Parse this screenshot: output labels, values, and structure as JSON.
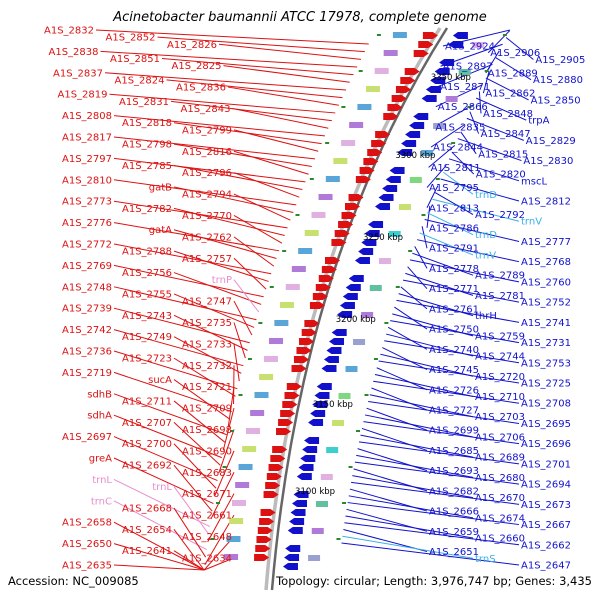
{
  "title": "Acinetobacter baumannii ATCC 17978, complete genome",
  "accession": "Accession: NC_009085",
  "summary": "Topology: circular; Length: 3,976,747 bp; Genes: 3,435",
  "colors": {
    "left_gene": "#dd1111",
    "right_gene": "#1111cc",
    "rna": "#e88fd0",
    "trna_right": "#3ab0e6",
    "ring": "#8a8a8a",
    "tick": "#2a8a2a"
  },
  "scale_labels": [
    "3350 kbp",
    "3300 kbp",
    "3250 kbp",
    "3200 kbp",
    "3150 kbp",
    "3100 kbp"
  ],
  "left_labels": [
    {
      "text": "A1S_2832",
      "type": "gene"
    },
    {
      "text": "A1S_2852",
      "type": "gene"
    },
    {
      "text": "A1S_2826",
      "type": "gene"
    },
    {
      "text": "A1S_2838",
      "type": "gene"
    },
    {
      "text": "A1S_2851",
      "type": "gene"
    },
    {
      "text": "A1S_2825",
      "type": "gene"
    },
    {
      "text": "A1S_2837",
      "type": "gene"
    },
    {
      "text": "A1S_2824",
      "type": "gene"
    },
    {
      "text": "A1S_2836",
      "type": "gene"
    },
    {
      "text": "A1S_2819",
      "type": "gene"
    },
    {
      "text": "A1S_2831",
      "type": "gene"
    },
    {
      "text": "A1S_2843",
      "type": "gene"
    },
    {
      "text": "A1S_2808",
      "type": "gene"
    },
    {
      "text": "A1S_2818",
      "type": "gene"
    },
    {
      "text": "A1S_2799",
      "type": "gene"
    },
    {
      "text": "A1S_2817",
      "type": "gene"
    },
    {
      "text": "A1S_2798",
      "type": "gene"
    },
    {
      "text": "A1S_2816",
      "type": "gene"
    },
    {
      "text": "A1S_2797",
      "type": "gene"
    },
    {
      "text": "A1S_2785",
      "type": "gene"
    },
    {
      "text": "A1S_2796",
      "type": "gene"
    },
    {
      "text": "A1S_2810",
      "type": "gene"
    },
    {
      "text": "gatB",
      "type": "gene"
    },
    {
      "text": "A1S_2794",
      "type": "gene"
    },
    {
      "text": "A1S_2773",
      "type": "gene"
    },
    {
      "text": "A1S_2782",
      "type": "gene"
    },
    {
      "text": "A1S_2770",
      "type": "gene"
    },
    {
      "text": "A1S_2776",
      "type": "gene"
    },
    {
      "text": "gatA",
      "type": "gene"
    },
    {
      "text": "A1S_2762",
      "type": "gene"
    },
    {
      "text": "A1S_2772",
      "type": "gene"
    },
    {
      "text": "A1S_2788",
      "type": "gene"
    },
    {
      "text": "A1S_2757",
      "type": "gene"
    },
    {
      "text": "A1S_2769",
      "type": "gene"
    },
    {
      "text": "A1S_2756",
      "type": "gene"
    },
    {
      "text": "trnP",
      "type": "rna"
    },
    {
      "text": "A1S_2748",
      "type": "gene"
    },
    {
      "text": "A1S_2755",
      "type": "gene"
    },
    {
      "text": "A1S_2747",
      "type": "gene"
    },
    {
      "text": "A1S_2739",
      "type": "gene"
    },
    {
      "text": "A1S_2743",
      "type": "gene"
    },
    {
      "text": "A1S_2735",
      "type": "gene"
    },
    {
      "text": "A1S_2742",
      "type": "gene"
    },
    {
      "text": "A1S_2749",
      "type": "gene"
    },
    {
      "text": "A1S_2733",
      "type": "gene"
    },
    {
      "text": "A1S_2736",
      "type": "gene"
    },
    {
      "text": "A1S_2723",
      "type": "gene"
    },
    {
      "text": "A1S_2732",
      "type": "gene"
    },
    {
      "text": "A1S_2719",
      "type": "gene"
    },
    {
      "text": "sucA",
      "type": "gene"
    },
    {
      "text": "A1S_2721",
      "type": "gene"
    },
    {
      "text": "sdhB",
      "type": "gene"
    },
    {
      "text": "A1S_2711",
      "type": "gene"
    },
    {
      "text": "A1S_2709",
      "type": "gene"
    },
    {
      "text": "sdhA",
      "type": "gene"
    },
    {
      "text": "A1S_2707",
      "type": "gene"
    },
    {
      "text": "A1S_2698",
      "type": "gene"
    },
    {
      "text": "A1S_2697",
      "type": "gene"
    },
    {
      "text": "A1S_2700",
      "type": "gene"
    },
    {
      "text": "A1S_2690",
      "type": "gene"
    },
    {
      "text": "greA",
      "type": "gene"
    },
    {
      "text": "A1S_2692",
      "type": "gene"
    },
    {
      "text": "A1S_2683",
      "type": "gene"
    },
    {
      "text": "trnL",
      "type": "rna"
    },
    {
      "text": "trnL",
      "type": "rna"
    },
    {
      "text": "A1S_2671",
      "type": "gene"
    },
    {
      "text": "trnC",
      "type": "rna"
    },
    {
      "text": "A1S_2668",
      "type": "gene"
    },
    {
      "text": "A1S_2661",
      "type": "gene"
    },
    {
      "text": "A1S_2658",
      "type": "gene"
    },
    {
      "text": "A1S_2654",
      "type": "gene"
    },
    {
      "text": "A1S_2648",
      "type": "gene"
    },
    {
      "text": "A1S_2650",
      "type": "gene"
    },
    {
      "text": "A1S_2641",
      "type": "gene"
    },
    {
      "text": "A1S_2634",
      "type": "gene"
    },
    {
      "text": "A1S_2635",
      "type": "gene"
    }
  ],
  "right_labels": [
    {
      "text": "A1S_2924",
      "type": "gene"
    },
    {
      "text": "A1S_2906",
      "type": "gene"
    },
    {
      "text": "A1S_2905",
      "type": "gene"
    },
    {
      "text": "A1S_2897",
      "type": "gene"
    },
    {
      "text": "A1S_2889",
      "type": "gene"
    },
    {
      "text": "A1S_2880",
      "type": "gene"
    },
    {
      "text": "A1S_2871",
      "type": "gene"
    },
    {
      "text": "A1S_2862",
      "type": "gene"
    },
    {
      "text": "A1S_2850",
      "type": "gene"
    },
    {
      "text": "A1S_2866",
      "type": "gene"
    },
    {
      "text": "A1S_2848",
      "type": "gene"
    },
    {
      "text": "trpA",
      "type": "gene"
    },
    {
      "text": "A1S_2835",
      "type": "gene"
    },
    {
      "text": "A1S_2847",
      "type": "gene"
    },
    {
      "text": "A1S_2829",
      "type": "gene"
    },
    {
      "text": "A1S_2844",
      "type": "gene"
    },
    {
      "text": "A1S_2815",
      "type": "gene"
    },
    {
      "text": "A1S_2830",
      "type": "gene"
    },
    {
      "text": "A1S_2811",
      "type": "gene"
    },
    {
      "text": "A1S_2820",
      "type": "gene"
    },
    {
      "text": "mscL",
      "type": "gene"
    },
    {
      "text": "A1S_2795",
      "type": "gene"
    },
    {
      "text": "trnD",
      "type": "trna"
    },
    {
      "text": "A1S_2812",
      "type": "gene"
    },
    {
      "text": "A1S_2813",
      "type": "gene"
    },
    {
      "text": "A1S_2792",
      "type": "gene"
    },
    {
      "text": "trnV",
      "type": "trna"
    },
    {
      "text": "A1S_2786",
      "type": "gene"
    },
    {
      "text": "trnD",
      "type": "trna"
    },
    {
      "text": "A1S_2777",
      "type": "gene"
    },
    {
      "text": "A1S_2791",
      "type": "gene"
    },
    {
      "text": "trnV",
      "type": "trna"
    },
    {
      "text": "A1S_2768",
      "type": "gene"
    },
    {
      "text": "A1S_2778",
      "type": "gene"
    },
    {
      "text": "A1S_2789",
      "type": "gene"
    },
    {
      "text": "A1S_2760",
      "type": "gene"
    },
    {
      "text": "A1S_2771",
      "type": "gene"
    },
    {
      "text": "A1S_2781",
      "type": "gene"
    },
    {
      "text": "A1S_2752",
      "type": "gene"
    },
    {
      "text": "A1S_2761",
      "type": "gene"
    },
    {
      "text": "thrH",
      "type": "gene"
    },
    {
      "text": "A1S_2741",
      "type": "gene"
    },
    {
      "text": "A1S_2750",
      "type": "gene"
    },
    {
      "text": "A1S_2759",
      "type": "gene"
    },
    {
      "text": "A1S_2731",
      "type": "gene"
    },
    {
      "text": "A1S_2740",
      "type": "gene"
    },
    {
      "text": "A1S_2744",
      "type": "gene"
    },
    {
      "text": "A1S_2753",
      "type": "gene"
    },
    {
      "text": "A1S_2745",
      "type": "gene"
    },
    {
      "text": "A1S_2720",
      "type": "gene"
    },
    {
      "text": "A1S_2725",
      "type": "gene"
    },
    {
      "text": "A1S_2726",
      "type": "gene"
    },
    {
      "text": "A1S_2710",
      "type": "gene"
    },
    {
      "text": "A1S_2708",
      "type": "gene"
    },
    {
      "text": "A1S_2727",
      "type": "gene"
    },
    {
      "text": "A1S_2703",
      "type": "gene"
    },
    {
      "text": "A1S_2695",
      "type": "gene"
    },
    {
      "text": "A1S_2699",
      "type": "gene"
    },
    {
      "text": "A1S_2706",
      "type": "gene"
    },
    {
      "text": "A1S_2696",
      "type": "gene"
    },
    {
      "text": "A1S_2685",
      "type": "gene"
    },
    {
      "text": "A1S_2689",
      "type": "gene"
    },
    {
      "text": "A1S_2701",
      "type": "gene"
    },
    {
      "text": "A1S_2693",
      "type": "gene"
    },
    {
      "text": "A1S_2680",
      "type": "gene"
    },
    {
      "text": "A1S_2694",
      "type": "gene"
    },
    {
      "text": "A1S_2682",
      "type": "gene"
    },
    {
      "text": "A1S_2670",
      "type": "gene"
    },
    {
      "text": "A1S_2673",
      "type": "gene"
    },
    {
      "text": "A1S_2666",
      "type": "gene"
    },
    {
      "text": "A1S_2674",
      "type": "gene"
    },
    {
      "text": "A1S_2667",
      "type": "gene"
    },
    {
      "text": "A1S_2659",
      "type": "gene"
    },
    {
      "text": "A1S_2660",
      "type": "gene"
    },
    {
      "text": "A1S_2662",
      "type": "gene"
    },
    {
      "text": "A1S_2651",
      "type": "gene"
    },
    {
      "text": "trnS",
      "type": "trna"
    },
    {
      "text": "A1S_2647",
      "type": "gene"
    }
  ]
}
